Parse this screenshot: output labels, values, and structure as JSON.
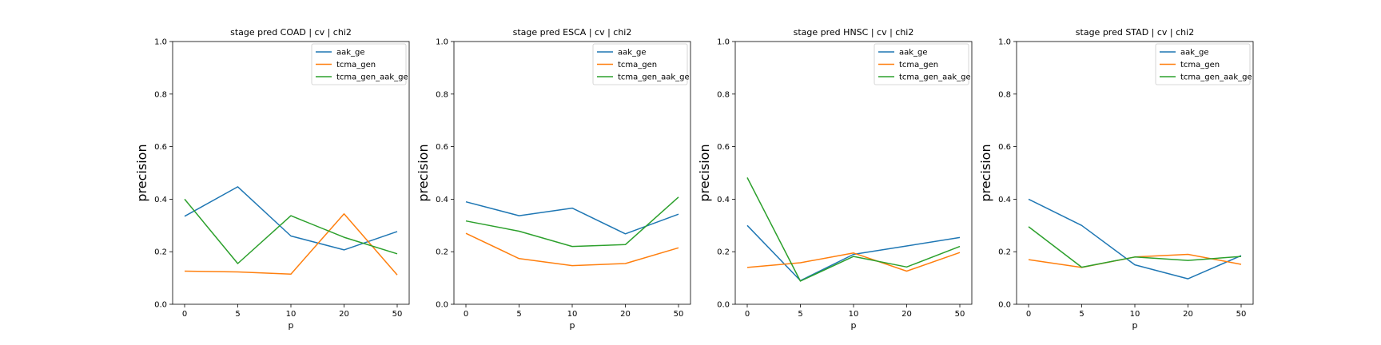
{
  "colors": {
    "aak_ge": "#1f77b4",
    "tcma_gen": "#ff7f0e",
    "tcma_gen_aak_ge": "#2ca02c"
  },
  "chart_data": [
    {
      "type": "line",
      "title": "stage pred COAD | cv | chi2",
      "xlabel": "p",
      "ylabel": "precision",
      "categories": [
        "0",
        "5",
        "10",
        "20",
        "50"
      ],
      "ylim": [
        0,
        1
      ],
      "yticks": [
        "0.0",
        "0.2",
        "0.4",
        "0.6",
        "0.8",
        "1.0"
      ],
      "legend": "top-right",
      "series": [
        {
          "name": "aak_ge",
          "values": [
            0.335,
            0.447,
            0.26,
            0.207,
            0.277
          ]
        },
        {
          "name": "tcma_gen",
          "values": [
            0.126,
            0.123,
            0.115,
            0.344,
            0.112
          ]
        },
        {
          "name": "tcma_gen_aak_ge",
          "values": [
            0.4,
            0.155,
            0.337,
            0.255,
            0.192
          ]
        }
      ]
    },
    {
      "type": "line",
      "title": "stage pred ESCA | cv | chi2",
      "xlabel": "p",
      "ylabel": "precision",
      "categories": [
        "0",
        "5",
        "10",
        "20",
        "50"
      ],
      "ylim": [
        0,
        1
      ],
      "yticks": [
        "0.0",
        "0.2",
        "0.4",
        "0.6",
        "0.8",
        "1.0"
      ],
      "legend": "top-right",
      "series": [
        {
          "name": "aak_ge",
          "values": [
            0.39,
            0.337,
            0.366,
            0.268,
            0.343
          ]
        },
        {
          "name": "tcma_gen",
          "values": [
            0.27,
            0.174,
            0.147,
            0.155,
            0.215
          ]
        },
        {
          "name": "tcma_gen_aak_ge",
          "values": [
            0.317,
            0.278,
            0.22,
            0.227,
            0.408
          ]
        }
      ]
    },
    {
      "type": "line",
      "title": "stage pred HNSC | cv | chi2",
      "xlabel": "p",
      "ylabel": "precision",
      "categories": [
        "0",
        "5",
        "10",
        "20",
        "50"
      ],
      "ylim": [
        0,
        1
      ],
      "yticks": [
        "0.0",
        "0.2",
        "0.4",
        "0.6",
        "0.8",
        "1.0"
      ],
      "legend": "top-right",
      "series": [
        {
          "name": "aak_ge",
          "values": [
            0.3,
            0.09,
            0.19,
            0.222,
            0.254
          ]
        },
        {
          "name": "tcma_gen",
          "values": [
            0.14,
            0.158,
            0.195,
            0.126,
            0.197
          ]
        },
        {
          "name": "tcma_gen_aak_ge",
          "values": [
            0.482,
            0.088,
            0.182,
            0.142,
            0.22
          ]
        }
      ]
    },
    {
      "type": "line",
      "title": "stage pred STAD | cv | chi2",
      "xlabel": "p",
      "ylabel": "precision",
      "categories": [
        "0",
        "5",
        "10",
        "20",
        "50"
      ],
      "ylim": [
        0,
        1
      ],
      "yticks": [
        "0.0",
        "0.2",
        "0.4",
        "0.6",
        "0.8",
        "1.0"
      ],
      "legend": "top-right",
      "series": [
        {
          "name": "aak_ge",
          "values": [
            0.4,
            0.3,
            0.15,
            0.097,
            0.185
          ]
        },
        {
          "name": "tcma_gen",
          "values": [
            0.17,
            0.14,
            0.18,
            0.19,
            0.152
          ]
        },
        {
          "name": "tcma_gen_aak_ge",
          "values": [
            0.295,
            0.141,
            0.18,
            0.167,
            0.182
          ]
        }
      ]
    }
  ]
}
